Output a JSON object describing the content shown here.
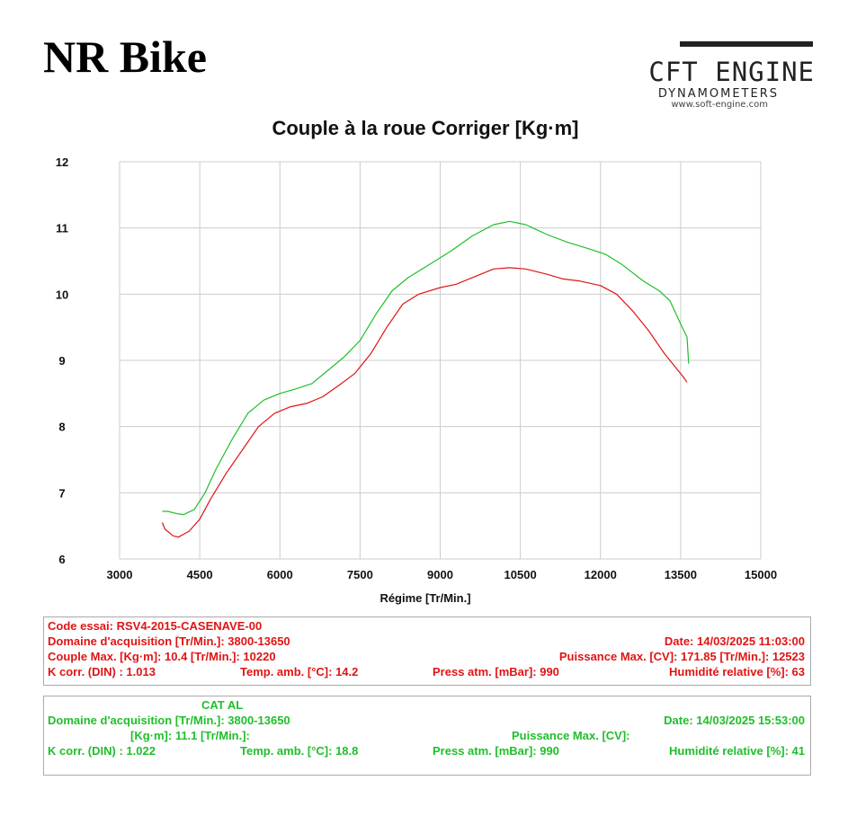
{
  "header": {
    "title": "NR Bike",
    "logo_line1": "CFT ENGINE",
    "logo_line2": "DYNAMOMETERS",
    "logo_line3": "www.soft-engine.com"
  },
  "colors": {
    "run1": "#e01414",
    "run2": "#1fbf2a",
    "grid": "#cccccc"
  },
  "chart_data": {
    "type": "line",
    "title": "Couple à la roue Corriger [Kg·m]",
    "xlabel": "Régime [Tr/Min.]",
    "ylabel": "",
    "xlim": [
      3000,
      15000
    ],
    "ylim": [
      6,
      12
    ],
    "xticks": [
      3000,
      4500,
      6000,
      7500,
      9000,
      10500,
      12000,
      13500,
      15000
    ],
    "yticks": [
      6,
      7,
      8,
      9,
      10,
      11,
      12
    ],
    "grid": true,
    "series": [
      {
        "color": "#e01414",
        "points": [
          [
            3800,
            6.55
          ],
          [
            3850,
            6.45
          ],
          [
            4000,
            6.35
          ],
          [
            4100,
            6.33
          ],
          [
            4300,
            6.42
          ],
          [
            4500,
            6.6
          ],
          [
            4700,
            6.9
          ],
          [
            5000,
            7.3
          ],
          [
            5300,
            7.65
          ],
          [
            5600,
            8.0
          ],
          [
            5900,
            8.2
          ],
          [
            6200,
            8.3
          ],
          [
            6500,
            8.35
          ],
          [
            6800,
            8.45
          ],
          [
            7100,
            8.62
          ],
          [
            7400,
            8.8
          ],
          [
            7700,
            9.1
          ],
          [
            8000,
            9.5
          ],
          [
            8300,
            9.85
          ],
          [
            8600,
            10.0
          ],
          [
            9000,
            10.1
          ],
          [
            9300,
            10.15
          ],
          [
            9600,
            10.25
          ],
          [
            10000,
            10.38
          ],
          [
            10300,
            10.4
          ],
          [
            10600,
            10.38
          ],
          [
            11000,
            10.3
          ],
          [
            11300,
            10.23
          ],
          [
            11600,
            10.2
          ],
          [
            12000,
            10.13
          ],
          [
            12300,
            10.0
          ],
          [
            12600,
            9.75
          ],
          [
            12900,
            9.45
          ],
          [
            13200,
            9.1
          ],
          [
            13400,
            8.9
          ],
          [
            13550,
            8.75
          ],
          [
            13620,
            8.67
          ]
        ]
      },
      {
        "color": "#1fbf2a",
        "points": [
          [
            3800,
            6.72
          ],
          [
            3900,
            6.72
          ],
          [
            4100,
            6.68
          ],
          [
            4200,
            6.67
          ],
          [
            4400,
            6.75
          ],
          [
            4600,
            7.0
          ],
          [
            4800,
            7.35
          ],
          [
            5100,
            7.8
          ],
          [
            5400,
            8.2
          ],
          [
            5700,
            8.4
          ],
          [
            6000,
            8.5
          ],
          [
            6300,
            8.57
          ],
          [
            6600,
            8.65
          ],
          [
            6900,
            8.85
          ],
          [
            7200,
            9.05
          ],
          [
            7500,
            9.3
          ],
          [
            7800,
            9.7
          ],
          [
            8100,
            10.05
          ],
          [
            8400,
            10.25
          ],
          [
            8800,
            10.45
          ],
          [
            9200,
            10.65
          ],
          [
            9600,
            10.88
          ],
          [
            10000,
            11.05
          ],
          [
            10300,
            11.1
          ],
          [
            10600,
            11.05
          ],
          [
            11000,
            10.9
          ],
          [
            11400,
            10.78
          ],
          [
            11800,
            10.68
          ],
          [
            12100,
            10.6
          ],
          [
            12400,
            10.45
          ],
          [
            12800,
            10.2
          ],
          [
            13100,
            10.05
          ],
          [
            13300,
            9.9
          ],
          [
            13500,
            9.55
          ],
          [
            13620,
            9.35
          ],
          [
            13650,
            8.95
          ]
        ]
      }
    ]
  },
  "info_run1": {
    "row1_left": "Code essai: RSV4-2015-CASENAVE-00",
    "row2_left": "Domaine d'acquisition [Tr/Min.]: 3800-13650",
    "row2_right": "Date: 14/03/2025   11:03:00",
    "row3_left": "Couple Max. [Kg·m]: 10.4   [Tr/Min.]: 10220",
    "row3_right": "Puissance Max. [CV]: 171.85   [Tr/Min.]: 12523",
    "row4_a": "K corr. (DIN) : 1.013",
    "row4_b": "Temp. amb. [°C]: 14.2",
    "row4_c": "Press atm. [mBar]: 990",
    "row4_d": "Humidité relative [%]: 63"
  },
  "info_run2": {
    "row1_left": "CAT   AL",
    "row2_left": "Domaine d'acquisition [Tr/Min.]: 3800-13650",
    "row2_right": "Date: 14/03/2025   15:53:00",
    "row3_left": "[Kg·m]: 11.1   [Tr/Min.]:",
    "row3_right": "Puissance Max. [CV]:",
    "row4_a": "K corr. (DIN) : 1.022",
    "row4_b": "Temp. amb. [°C]: 18.8",
    "row4_c": "Press atm. [mBar]: 990",
    "row4_d": "Humidité relative [%]: 41"
  }
}
